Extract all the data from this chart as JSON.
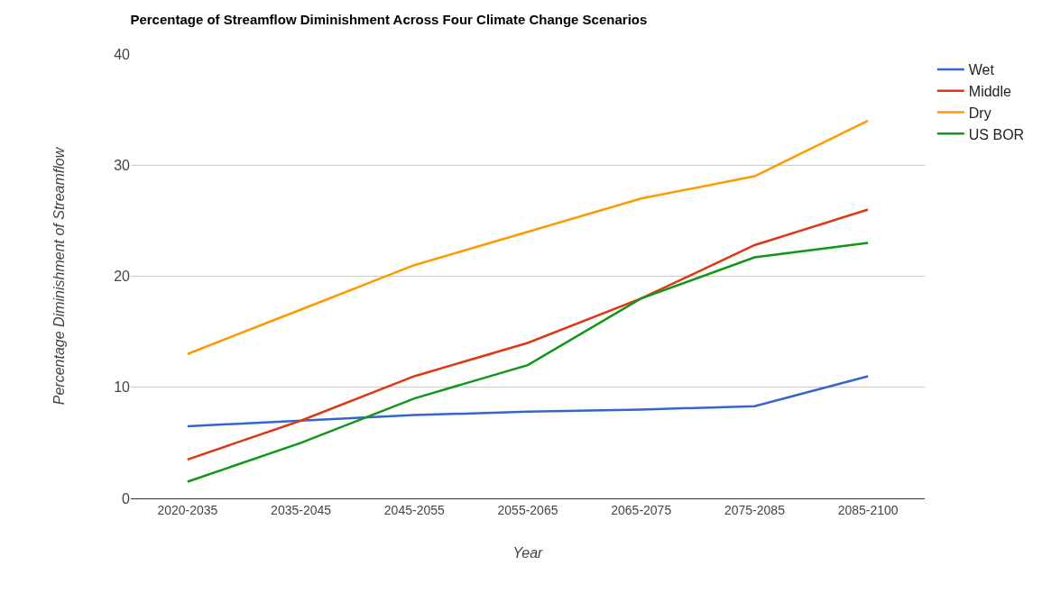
{
  "chart_data": {
    "type": "line",
    "title": "Percentage of Streamflow Diminishment Across Four Climate Change Scenarios",
    "xlabel": "Year",
    "ylabel": "Percentage Diminishment of Streamflow",
    "categories": [
      "2020-2035",
      "2035-2045",
      "2045-2055",
      "2055-2065",
      "2065-2075",
      "2075-2085",
      "2085-2100"
    ],
    "series": [
      {
        "name": "Wet",
        "color": "#3366cc",
        "values": [
          6.5,
          7,
          7.5,
          7.8,
          8,
          8.3,
          11
        ]
      },
      {
        "name": "Middle",
        "color": "#dc3912",
        "values": [
          3.5,
          7,
          11,
          14,
          18,
          22.8,
          26
        ]
      },
      {
        "name": "Dry",
        "color": "#ff9900",
        "values": [
          13,
          17,
          21,
          24,
          27,
          29,
          34
        ]
      },
      {
        "name": "US BOR",
        "color": "#109618",
        "values": [
          1.5,
          5,
          9,
          12,
          18,
          21.7,
          23
        ]
      }
    ],
    "ylim": [
      0,
      40
    ],
    "yticks": [
      0,
      10,
      20,
      30,
      40
    ],
    "grid": "y",
    "legend": "top right",
    "marker": "none",
    "line_style": "solid"
  }
}
